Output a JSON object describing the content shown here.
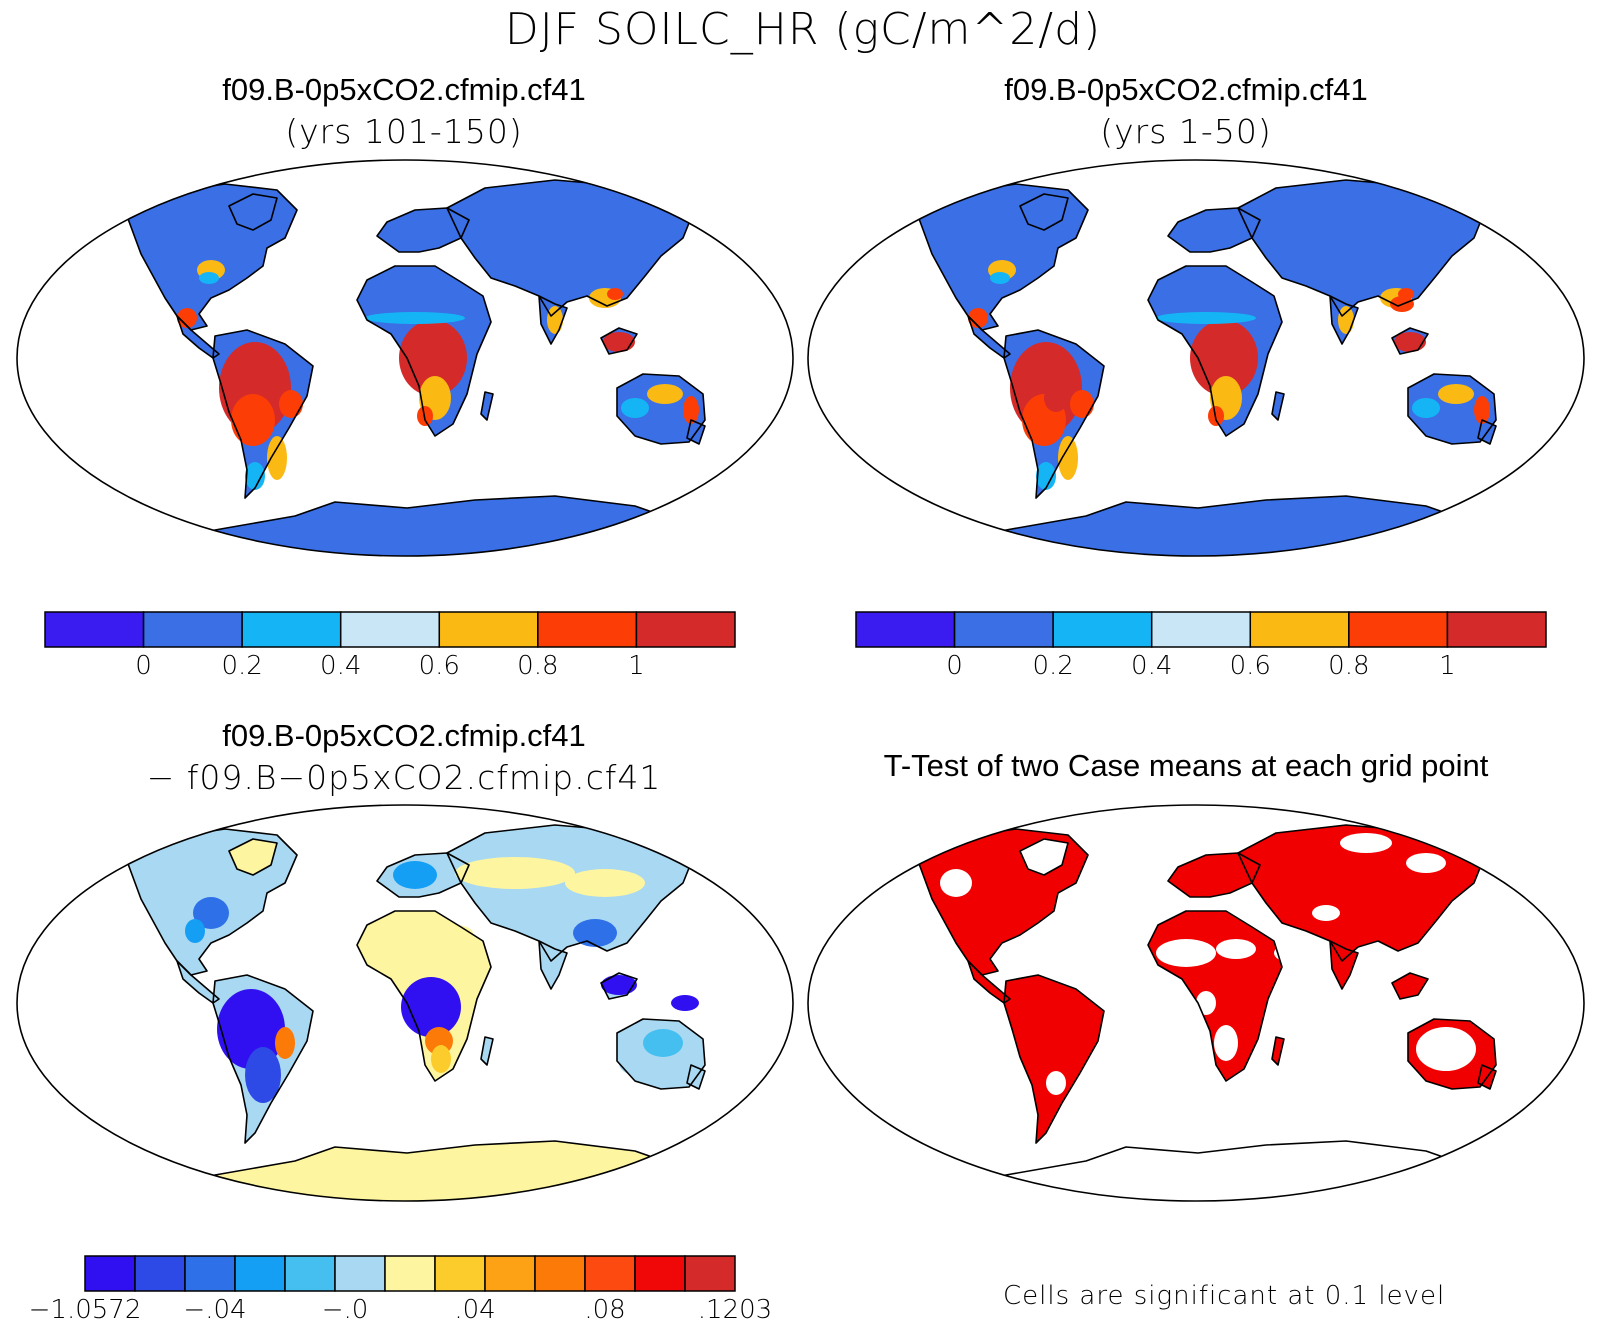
{
  "figure": {
    "title": "DJF SOILC_HR (gC/m^2/d)"
  },
  "panels": {
    "top_left": {
      "case": "f09.B-0p5xCO2.cfmip.cf41",
      "subtitle": "(yrs 101-150)",
      "colorbar": {
        "colors": [
          "#3a1bf0",
          "#3a6fe6",
          "#15b5f5",
          "#c9e6f6",
          "#fbb914",
          "#fc3e06",
          "#d42a2a"
        ],
        "labels": [
          "0",
          "0.2",
          "0.4",
          "0.6",
          "0.8",
          "1"
        ]
      }
    },
    "top_right": {
      "case": "f09.B-0p5xCO2.cfmip.cf41",
      "subtitle": "(yrs 1-50)",
      "colorbar": {
        "colors": [
          "#3a1bf0",
          "#3a6fe6",
          "#15b5f5",
          "#c9e6f6",
          "#fbb914",
          "#fc3e06",
          "#d42a2a"
        ],
        "labels": [
          "0",
          "0.2",
          "0.4",
          "0.6",
          "0.8",
          "1"
        ]
      }
    },
    "bottom_left": {
      "case": "f09.B-0p5xCO2.cfmip.cf41",
      "subtitle": "− f09.B−0p5xCO2.cfmip.cf41",
      "colorbar": {
        "colors": [
          "#3010f0",
          "#2e4ae6",
          "#2e70e8",
          "#149ef4",
          "#44bff0",
          "#a8d8f2",
          "#fdf5a0",
          "#fbcc2c",
          "#fda214",
          "#fc7a08",
          "#fc4a10",
          "#f00808",
          "#d42a2a"
        ],
        "labels": [
          "−1.0572",
          "−.04",
          "−.0",
          ".04",
          ".08",
          ".1203"
        ]
      }
    },
    "bottom_right": {
      "title": "T-Test of two Case means at each grid point",
      "note": "Cells are significant at 0.1 level",
      "significant_color": "#f00000"
    }
  }
}
